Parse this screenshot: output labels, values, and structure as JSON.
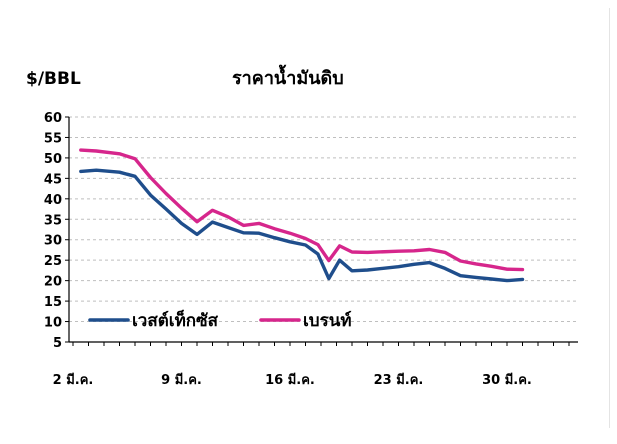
{
  "unit_label": "$/BBL",
  "title": "ราคาน้ำมันดิบ",
  "legend": [
    {
      "label": "เวสต์เท็กซัส",
      "color": "#1f4e8c"
    },
    {
      "label": "เบรนท์",
      "color": "#d6268c"
    }
  ],
  "chart_data": {
    "type": "line",
    "title": "ราคาน้ำมันดิบ",
    "ylabel": "$/BBL",
    "xlabel": "",
    "ylim": [
      5,
      60
    ],
    "yticks": [
      60,
      55,
      50,
      45,
      40,
      35,
      30,
      25,
      20,
      15,
      10,
      5
    ],
    "xticks": [
      {
        "label": "2 มี.ค.",
        "x": 2
      },
      {
        "label": "9 มี.ค.",
        "x": 9
      },
      {
        "label": "16 มี.ค.",
        "x": 16
      },
      {
        "label": "23 มี.ค.",
        "x": 23
      },
      {
        "label": "30 มี.ค.",
        "x": 30
      }
    ],
    "xlim": [
      2,
      34
    ],
    "grid": "horizontal dashed",
    "legend_position": "bottom-left",
    "series": [
      {
        "name": "เวสต์เท็กซัส",
        "color": "#1f4e8c",
        "x": [
          2.5,
          3.5,
          5,
          6,
          7,
          8,
          9,
          10,
          11,
          12,
          13,
          14,
          15,
          16,
          17,
          17.8,
          18.5,
          19.2,
          20,
          21,
          23,
          24,
          25,
          26,
          27,
          28,
          29,
          30,
          31
        ],
        "y": [
          46.7,
          47.0,
          46.5,
          45.5,
          40.9,
          37.5,
          34.0,
          31.3,
          34.3,
          33.0,
          31.7,
          31.6,
          30.5,
          29.5,
          28.7,
          26.5,
          20.5,
          25.0,
          22.4,
          22.6,
          23.4,
          24.0,
          24.4,
          23.0,
          21.2,
          20.8,
          20.4,
          20.0,
          20.3
        ]
      },
      {
        "name": "เบรนท์",
        "color": "#d6268c",
        "x": [
          2.5,
          3.5,
          5,
          6,
          7,
          8,
          9,
          10,
          11,
          12,
          13,
          14,
          15,
          16,
          17,
          17.8,
          18.5,
          19.2,
          20,
          21,
          23,
          24,
          25,
          26,
          27,
          28,
          29,
          30,
          31
        ],
        "y": [
          51.9,
          51.7,
          51.0,
          49.8,
          45.2,
          41.3,
          37.7,
          34.4,
          37.2,
          35.6,
          33.5,
          34.0,
          32.7,
          31.6,
          30.3,
          28.8,
          24.9,
          28.5,
          27.0,
          26.9,
          27.2,
          27.3,
          27.6,
          26.9,
          24.8,
          24.1,
          23.5,
          22.8,
          22.7
        ]
      }
    ]
  }
}
